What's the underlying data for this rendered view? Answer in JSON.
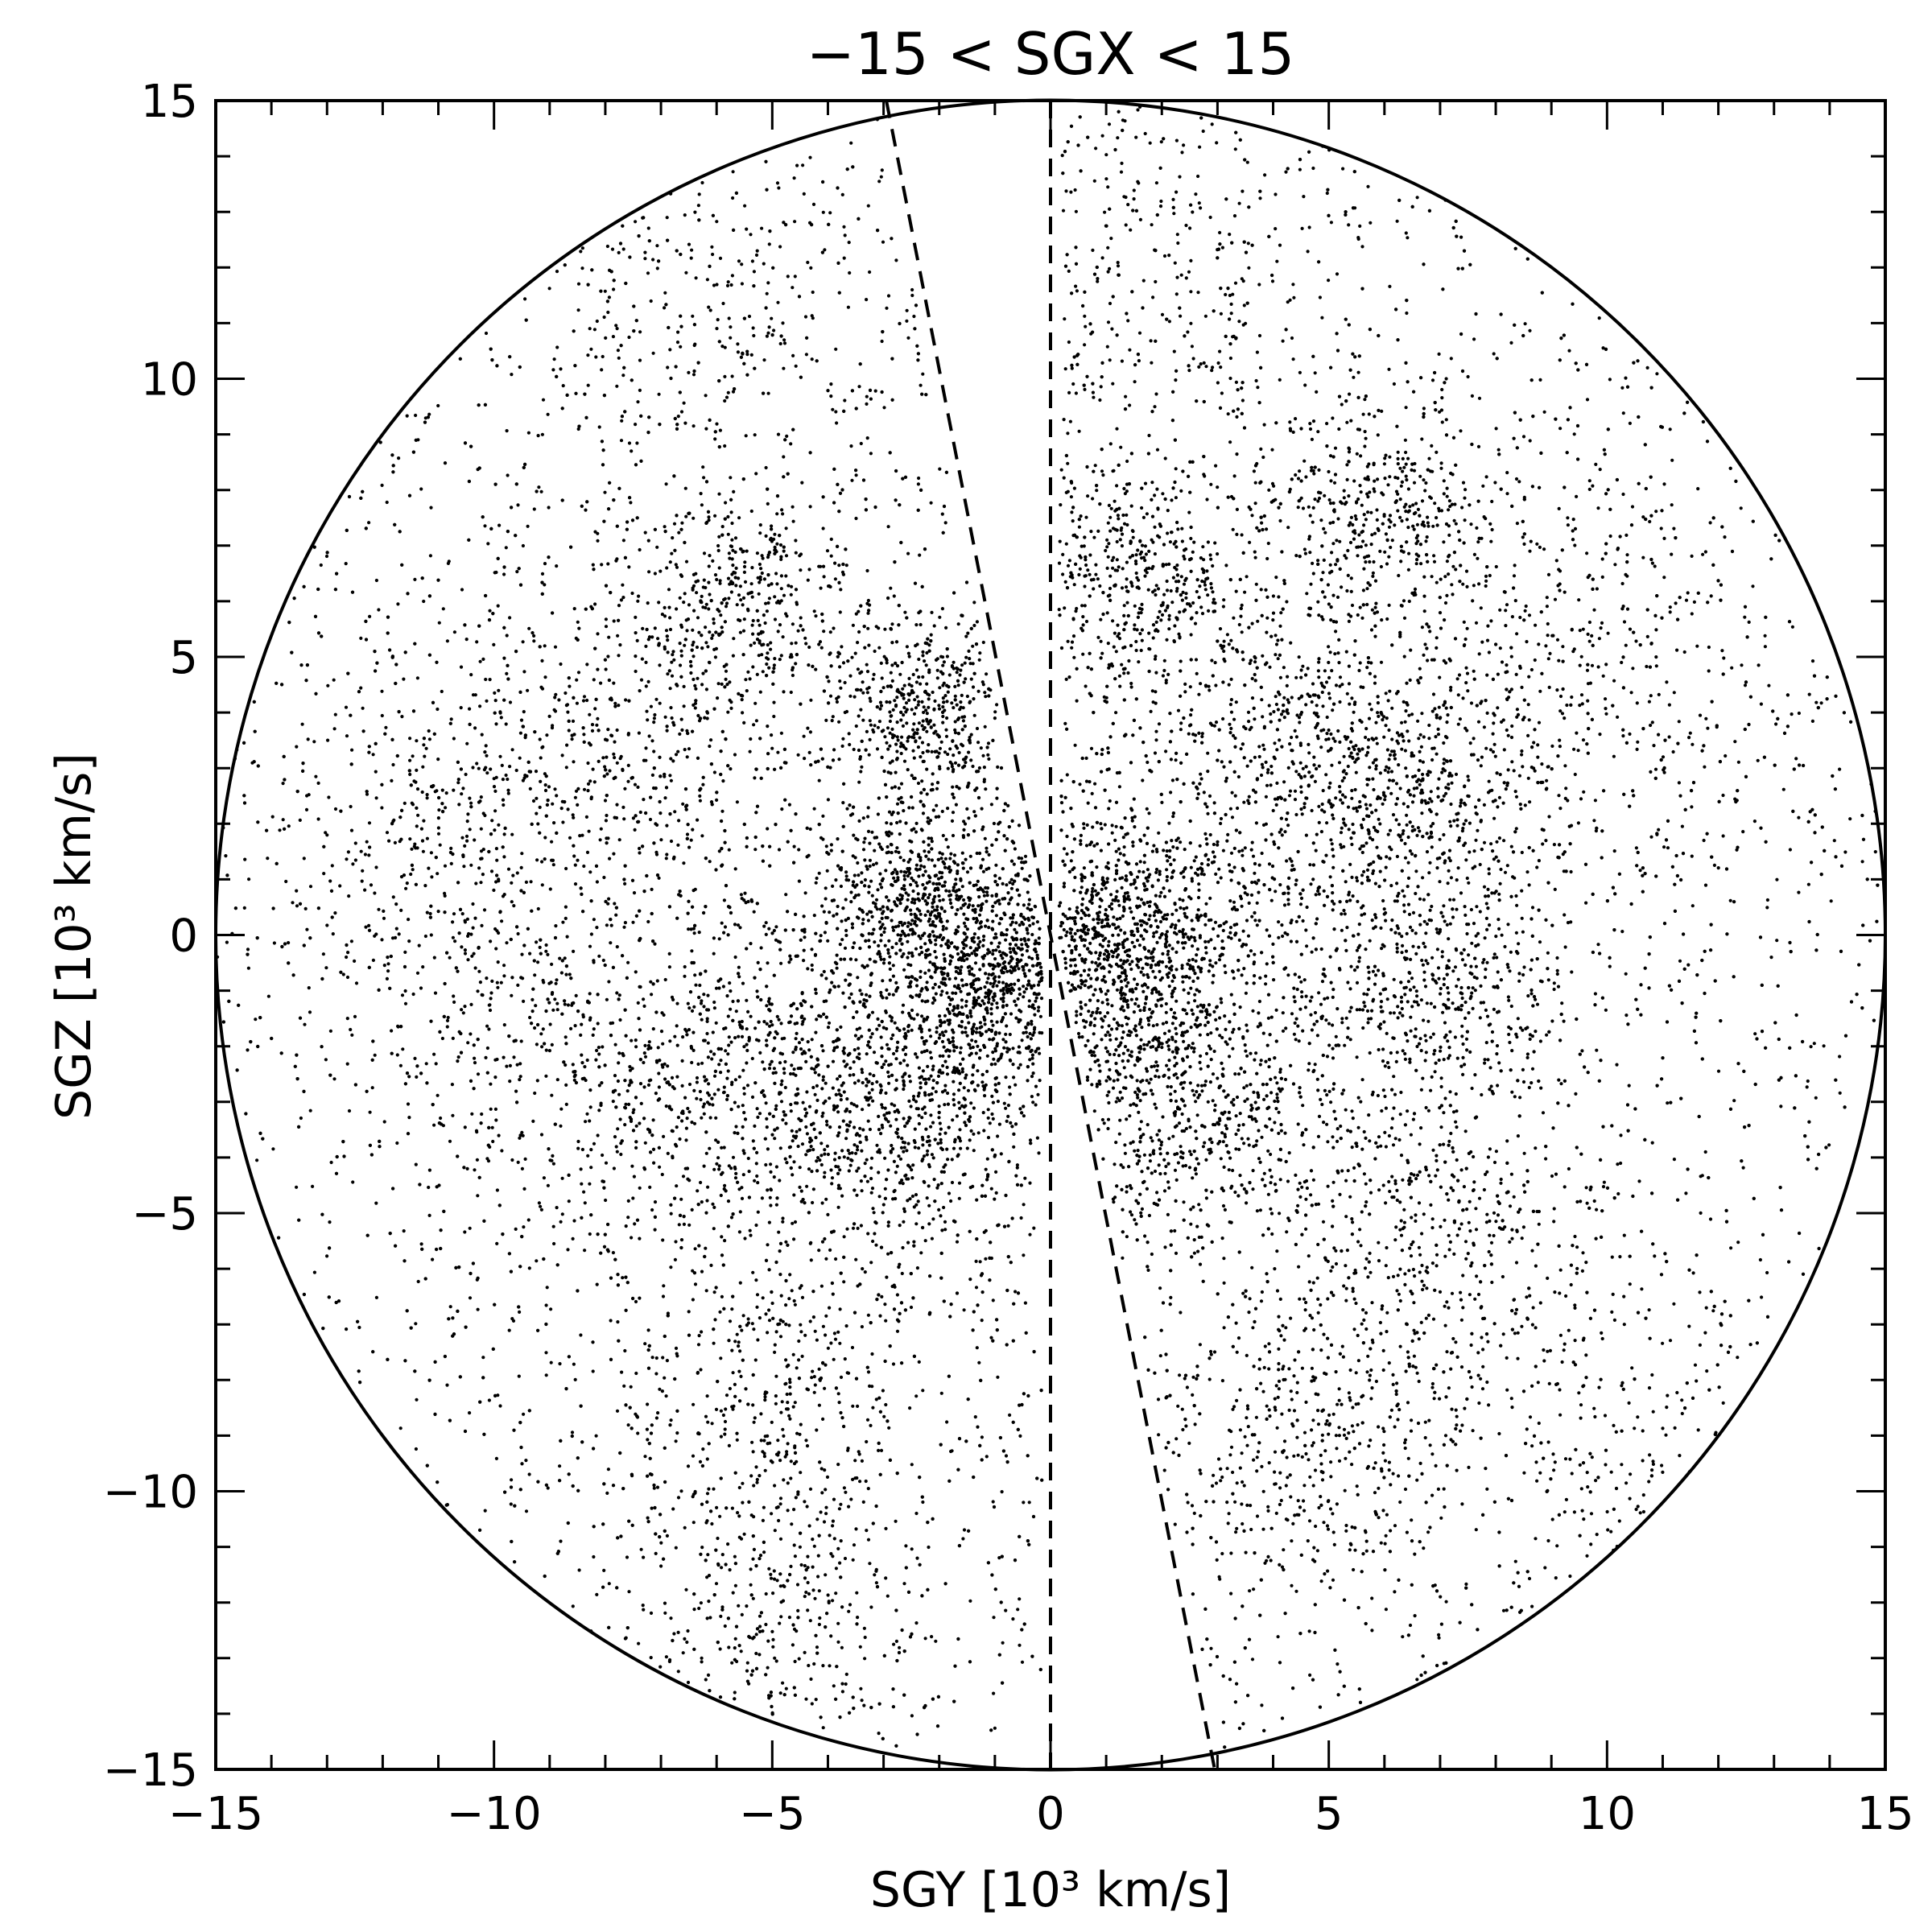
{
  "chart_data": {
    "type": "scatter",
    "title": "−15 < SGX < 15",
    "xlabel": "SGY [10³ km/s]",
    "ylabel": "SGZ [10³ km/s]",
    "xlim": [
      -15,
      15
    ],
    "ylim": [
      -15,
      15
    ],
    "x_ticks": [
      -15,
      -10,
      -5,
      0,
      5,
      10,
      15
    ],
    "y_ticks": [
      -15,
      -10,
      -5,
      0,
      5,
      10,
      15
    ],
    "x_tick_labels": [
      "−15",
      "−10",
      "−5",
      "0",
      "5",
      "10",
      "15"
    ],
    "y_tick_labels": [
      "−15",
      "−10",
      "−5",
      "0",
      "5",
      "10",
      "15"
    ],
    "minor_tick_step": 1,
    "grid": false,
    "legend": "none",
    "survey_boundary": {
      "shape": "circle",
      "center": [
        0,
        0
      ],
      "radius": 15
    },
    "dashed_lines": [
      {
        "from": [
          -2.95,
          15.0
        ],
        "to": [
          2.95,
          -15.0
        ]
      },
      {
        "from": [
          0,
          15.0
        ],
        "to": [
          0,
          -15.0
        ]
      }
    ],
    "point_density": {
      "description_note": "",
      "clusters": [
        {
          "center": [
            1.5,
            -0.2
          ],
          "spread": 1.2,
          "count": 900
        },
        {
          "center": [
            -1.3,
            -1.0
          ],
          "spread": 0.9,
          "count": 650
        },
        {
          "center": [
            -2.3,
            0.8
          ],
          "spread": 0.8,
          "count": 500
        },
        {
          "center": [
            -2.3,
            4.0
          ],
          "spread": 0.8,
          "count": 420
        },
        {
          "center": [
            -5.5,
            6.0
          ],
          "spread": 0.9,
          "count": 300
        },
        {
          "center": [
            1.5,
            6.3
          ],
          "spread": 0.9,
          "count": 380
        },
        {
          "center": [
            6.0,
            7.6
          ],
          "spread": 1.0,
          "count": 360
        },
        {
          "center": [
            6.5,
            2.5
          ],
          "spread": 1.3,
          "count": 480
        },
        {
          "center": [
            7.0,
            -1.0
          ],
          "spread": 1.2,
          "count": 420
        },
        {
          "center": [
            2.5,
            -3.0
          ],
          "spread": 1.3,
          "count": 560
        },
        {
          "center": [
            -5.0,
            -2.5
          ],
          "spread": 1.4,
          "count": 560
        },
        {
          "center": [
            -2.5,
            -3.5
          ],
          "spread": 1.0,
          "count": 400
        },
        {
          "center": [
            -5.0,
            -8.0
          ],
          "spread": 1.5,
          "count": 380
        },
        {
          "center": [
            -4.8,
            -12.0
          ],
          "spread": 1.3,
          "count": 260
        },
        {
          "center": [
            4.5,
            -9.0
          ],
          "spread": 1.4,
          "count": 360
        },
        {
          "center": [
            7.0,
            -5.0
          ],
          "spread": 1.4,
          "count": 320
        },
        {
          "center": [
            -8.0,
            3.5
          ],
          "spread": 1.6,
          "count": 420
        },
        {
          "center": [
            -11.0,
            1.0
          ],
          "spread": 1.6,
          "count": 300
        },
        {
          "center": [
            -8.5,
            -2.5
          ],
          "spread": 1.5,
          "count": 340
        },
        {
          "center": [
            4.5,
            3.5
          ],
          "spread": 1.3,
          "count": 380
        },
        {
          "center": [
            9.5,
            5.0
          ],
          "spread": 1.8,
          "count": 300
        },
        {
          "center": [
            2.0,
            12.0
          ],
          "spread": 2.0,
          "count": 260
        },
        {
          "center": [
            -6.0,
            11.0
          ],
          "spread": 2.0,
          "count": 240
        },
        {
          "center": [
            10.0,
            -9.0
          ],
          "spread": 2.0,
          "count": 220
        }
      ],
      "background_count": 9000
    }
  }
}
